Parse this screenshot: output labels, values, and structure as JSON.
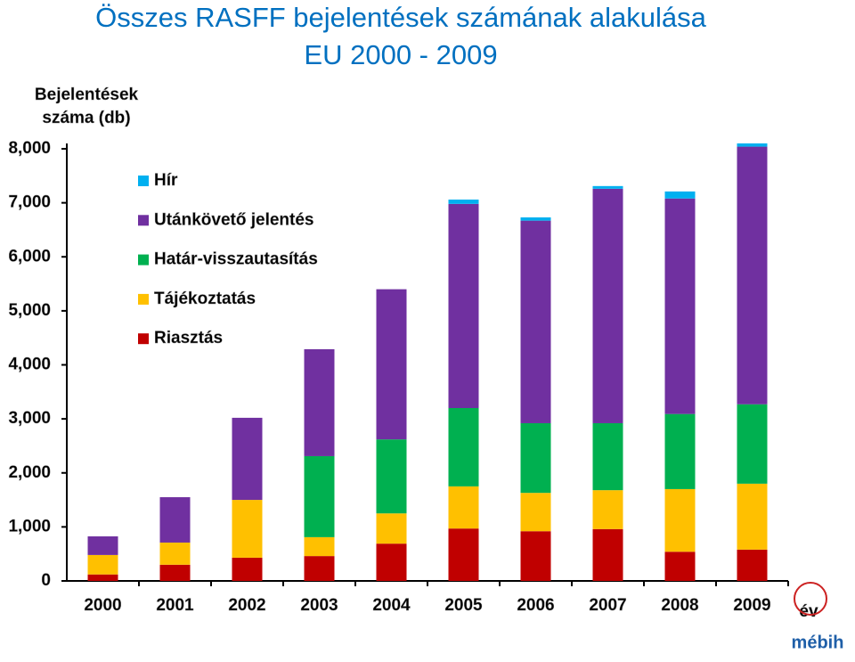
{
  "chart_data": {
    "type": "stacked_bar",
    "title": [
      "Összes RASFF bejelentések számának alakulása",
      "EU 2000 - 2009"
    ],
    "y_label": [
      "Bejelentések",
      "száma (db)"
    ],
    "x_label": "év",
    "logo": "mébih",
    "categories": [
      "2000",
      "2001",
      "2002",
      "2003",
      "2004",
      "2005",
      "2006",
      "2007",
      "2008",
      "2009"
    ],
    "series": [
      {
        "name": "Riasztás",
        "color": "#c00000",
        "values": [
          120,
          300,
          430,
          460,
          690,
          970,
          920,
          960,
          540,
          580
        ]
      },
      {
        "name": "Tájékoztatás",
        "color": "#ffc000",
        "values": [
          360,
          410,
          1070,
          350,
          560,
          780,
          710,
          720,
          1160,
          1220
        ]
      },
      {
        "name": "Határ-visszautasítás",
        "color": "#00b050",
        "values": [
          0,
          0,
          0,
          1500,
          1370,
          1450,
          1290,
          1240,
          1390,
          1470
        ]
      },
      {
        "name": "Utánkövető jelentés",
        "color": "#7030a0",
        "values": [
          345,
          840,
          1520,
          1980,
          2780,
          3780,
          3750,
          4340,
          3990,
          4770
        ]
      },
      {
        "name": "Hír",
        "color": "#00b0f0",
        "values": [
          0,
          0,
          0,
          0,
          0,
          80,
          60,
          50,
          130,
          60
        ]
      }
    ],
    "ylim": [
      0,
      8000
    ],
    "yticks": [
      0,
      {
        "value": 1000,
        "label": "1,000"
      },
      {
        "value": 2000,
        "label": "2,000"
      },
      {
        "value": 3000,
        "label": "3,000"
      },
      {
        "value": 4000,
        "label": "4,000"
      },
      {
        "value": 5000,
        "label": "5,000"
      },
      {
        "value": 6000,
        "label": "6,000"
      },
      {
        "value": 7000,
        "label": "7,000"
      },
      {
        "value": 8000,
        "label": "8,000"
      }
    ],
    "grid": false
  }
}
